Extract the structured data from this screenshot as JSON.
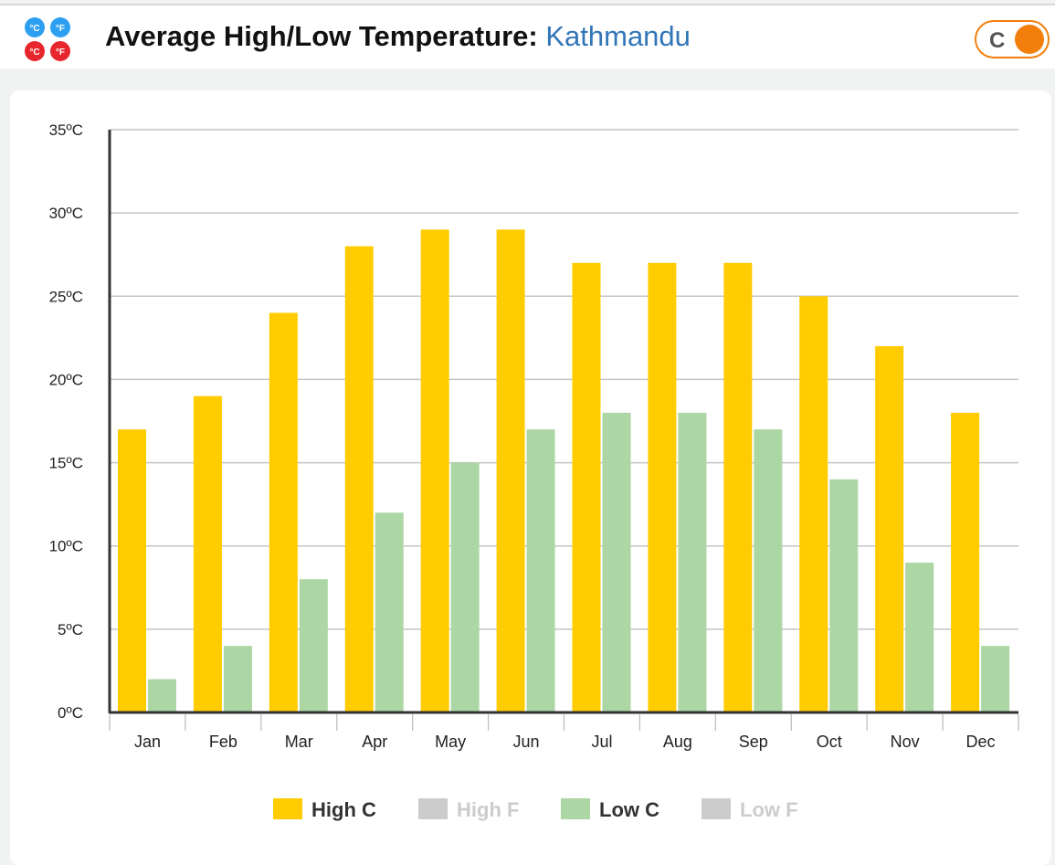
{
  "header": {
    "title": "Average High/Low Temperature:",
    "city": "Kathmandu",
    "toggle_label": "C",
    "logo_badges": [
      "°C",
      "°F",
      "°C",
      "°F"
    ]
  },
  "colors": {
    "high_c": "#ffcc00",
    "low_c": "#add6a5",
    "disabled": "#cccccc",
    "toggle": "#f27f0c",
    "city_link": "#3276b8"
  },
  "chart_data": {
    "type": "bar",
    "categories": [
      "Jan",
      "Feb",
      "Mar",
      "Apr",
      "May",
      "Jun",
      "Jul",
      "Aug",
      "Sep",
      "Oct",
      "Nov",
      "Dec"
    ],
    "series": [
      {
        "name": "High C",
        "color": "#ffcc00",
        "values": [
          17,
          19,
          24,
          28,
          29,
          29,
          27,
          27,
          27,
          25,
          22,
          18
        ]
      },
      {
        "name": "Low C",
        "color": "#add6a5",
        "values": [
          2,
          4,
          8,
          12,
          15,
          17,
          18,
          18,
          17,
          14,
          9,
          4
        ]
      }
    ],
    "y_ticks": [
      "0ºC",
      "5ºC",
      "10ºC",
      "15ºC",
      "20ºC",
      "25ºC",
      "30ºC",
      "35ºC"
    ],
    "ylim": [
      0,
      35
    ],
    "grid": true,
    "legend_position": "bottom",
    "legend": [
      {
        "label": "High C",
        "color": "#ffcc00",
        "active": true
      },
      {
        "label": "High F",
        "color": "#cccccc",
        "active": false
      },
      {
        "label": "Low C",
        "color": "#add6a5",
        "active": true
      },
      {
        "label": "Low F",
        "color": "#cccccc",
        "active": false
      }
    ]
  }
}
